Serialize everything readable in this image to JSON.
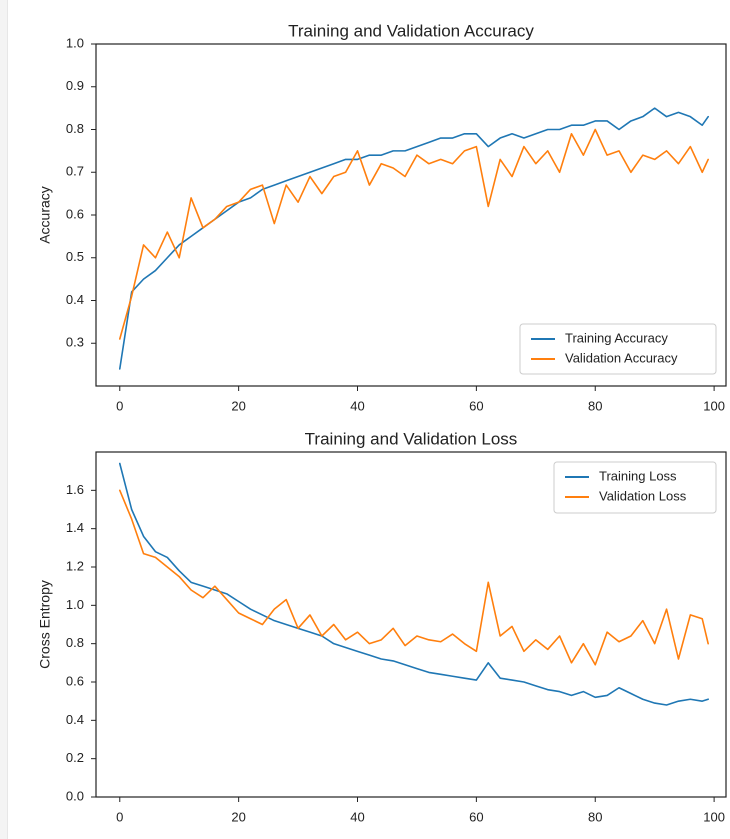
{
  "chart_data": [
    {
      "type": "line",
      "title": "Training and Validation Accuracy",
      "xlabel": "",
      "ylabel": "Accuracy",
      "xlim": [
        -4,
        102
      ],
      "ylim": [
        0.2,
        1.0
      ],
      "x_ticks": [
        0,
        20,
        40,
        60,
        80,
        100
      ],
      "y_ticks": [
        0.3,
        0.4,
        0.5,
        0.6,
        0.7,
        0.8,
        0.9,
        1.0
      ],
      "x_tick_labels": [
        "0",
        "20",
        "40",
        "60",
        "80",
        "100"
      ],
      "y_tick_labels": [
        "0.3",
        "0.4",
        "0.5",
        "0.6",
        "0.7",
        "0.8",
        "0.9",
        "1.0"
      ],
      "legend_position": "lower-right",
      "x": [
        0,
        2,
        4,
        6,
        8,
        10,
        12,
        14,
        16,
        18,
        20,
        22,
        24,
        26,
        28,
        30,
        32,
        34,
        36,
        38,
        40,
        42,
        44,
        46,
        48,
        50,
        52,
        54,
        56,
        58,
        60,
        62,
        64,
        66,
        68,
        70,
        72,
        74,
        76,
        78,
        80,
        82,
        84,
        86,
        88,
        90,
        92,
        94,
        96,
        98,
        99
      ],
      "series": [
        {
          "name": "Training Accuracy",
          "color": "#1f77b4",
          "values": [
            0.24,
            0.42,
            0.45,
            0.47,
            0.5,
            0.53,
            0.55,
            0.57,
            0.59,
            0.61,
            0.63,
            0.64,
            0.66,
            0.67,
            0.68,
            0.69,
            0.7,
            0.71,
            0.72,
            0.73,
            0.73,
            0.74,
            0.74,
            0.75,
            0.75,
            0.76,
            0.77,
            0.78,
            0.78,
            0.79,
            0.79,
            0.76,
            0.78,
            0.79,
            0.78,
            0.79,
            0.8,
            0.8,
            0.81,
            0.81,
            0.82,
            0.82,
            0.8,
            0.82,
            0.83,
            0.85,
            0.83,
            0.84,
            0.83,
            0.81,
            0.83
          ]
        },
        {
          "name": "Validation Accuracy",
          "color": "#ff7f0e",
          "values": [
            0.31,
            0.41,
            0.53,
            0.5,
            0.56,
            0.5,
            0.64,
            0.57,
            0.59,
            0.62,
            0.63,
            0.66,
            0.67,
            0.58,
            0.67,
            0.63,
            0.69,
            0.65,
            0.69,
            0.7,
            0.75,
            0.67,
            0.72,
            0.71,
            0.69,
            0.74,
            0.72,
            0.73,
            0.72,
            0.75,
            0.76,
            0.62,
            0.73,
            0.69,
            0.76,
            0.72,
            0.75,
            0.7,
            0.79,
            0.74,
            0.8,
            0.74,
            0.75,
            0.7,
            0.74,
            0.73,
            0.75,
            0.72,
            0.76,
            0.7,
            0.73
          ]
        }
      ]
    },
    {
      "type": "line",
      "title": "Training and Validation Loss",
      "xlabel": "",
      "ylabel": "Cross Entropy",
      "xlim": [
        -4,
        102
      ],
      "ylim": [
        0.0,
        1.8
      ],
      "x_ticks": [
        0,
        20,
        40,
        60,
        80,
        100
      ],
      "y_ticks": [
        0.0,
        0.2,
        0.4,
        0.6,
        0.8,
        1.0,
        1.2,
        1.4,
        1.6
      ],
      "x_tick_labels": [
        "0",
        "20",
        "40",
        "60",
        "80",
        "100"
      ],
      "y_tick_labels": [
        "0.0",
        "0.2",
        "0.4",
        "0.6",
        "0.8",
        "1.0",
        "1.2",
        "1.4",
        "1.6"
      ],
      "legend_position": "upper-right",
      "x": [
        0,
        2,
        4,
        6,
        8,
        10,
        12,
        14,
        16,
        18,
        20,
        22,
        24,
        26,
        28,
        30,
        32,
        34,
        36,
        38,
        40,
        42,
        44,
        46,
        48,
        50,
        52,
        54,
        56,
        58,
        60,
        62,
        64,
        66,
        68,
        70,
        72,
        74,
        76,
        78,
        80,
        82,
        84,
        86,
        88,
        90,
        92,
        94,
        96,
        98,
        99
      ],
      "series": [
        {
          "name": "Training Loss",
          "color": "#1f77b4",
          "values": [
            1.74,
            1.5,
            1.36,
            1.28,
            1.25,
            1.18,
            1.12,
            1.1,
            1.08,
            1.06,
            1.02,
            0.98,
            0.95,
            0.92,
            0.9,
            0.88,
            0.86,
            0.84,
            0.8,
            0.78,
            0.76,
            0.74,
            0.72,
            0.71,
            0.69,
            0.67,
            0.65,
            0.64,
            0.63,
            0.62,
            0.61,
            0.7,
            0.62,
            0.61,
            0.6,
            0.58,
            0.56,
            0.55,
            0.53,
            0.55,
            0.52,
            0.53,
            0.57,
            0.54,
            0.51,
            0.49,
            0.48,
            0.5,
            0.51,
            0.5,
            0.51
          ]
        },
        {
          "name": "Validation Loss",
          "color": "#ff7f0e",
          "values": [
            1.6,
            1.45,
            1.27,
            1.25,
            1.2,
            1.15,
            1.08,
            1.04,
            1.1,
            1.03,
            0.96,
            0.93,
            0.9,
            0.98,
            1.03,
            0.88,
            0.95,
            0.84,
            0.9,
            0.82,
            0.86,
            0.8,
            0.82,
            0.88,
            0.79,
            0.84,
            0.82,
            0.81,
            0.85,
            0.8,
            0.76,
            1.12,
            0.84,
            0.89,
            0.76,
            0.82,
            0.77,
            0.84,
            0.7,
            0.8,
            0.69,
            0.86,
            0.81,
            0.84,
            0.92,
            0.8,
            0.98,
            0.72,
            0.95,
            0.93,
            0.8
          ]
        }
      ]
    }
  ]
}
